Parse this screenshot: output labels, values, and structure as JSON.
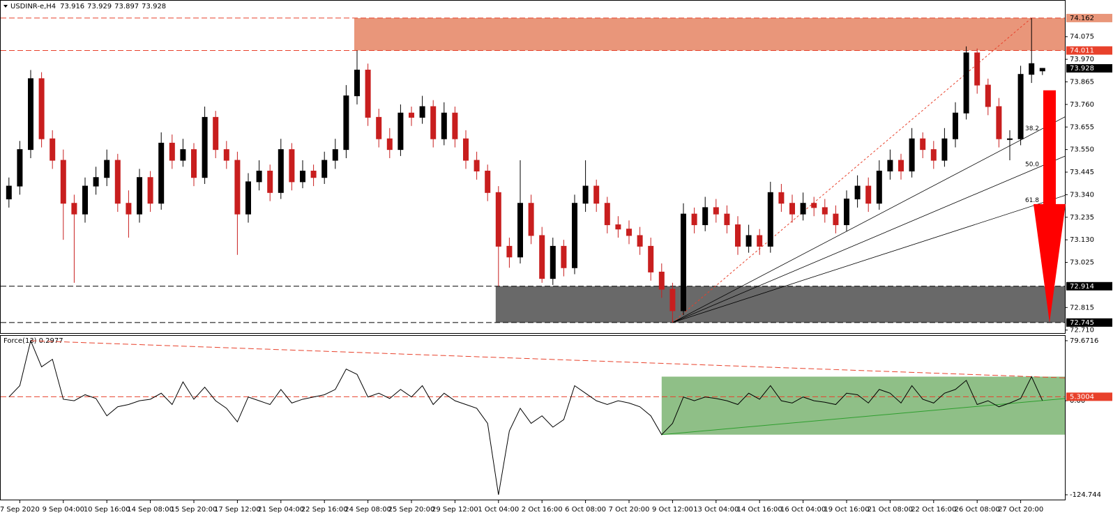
{
  "chart_data": [
    {
      "type": "candlestick",
      "symbol": "USDINR-e,H4",
      "color": "#000000",
      "down_color": "#c81e1e",
      "categories": [
        null,
        "7 Sep 2020",
        null,
        null,
        null,
        "9 Sep 04:00",
        null,
        null,
        null,
        "10 Sep 16:00",
        null,
        null,
        null,
        "14 Sep 08:00",
        null,
        null,
        null,
        "15 Sep 20:00",
        null,
        null,
        null,
        "17 Sep 12:00",
        null,
        null,
        null,
        "21 Sep 04:00",
        null,
        null,
        null,
        "22 Sep 16:00",
        null,
        null,
        null,
        "24 Sep 08:00",
        null,
        null,
        null,
        "25 Sep 20:00",
        null,
        null,
        null,
        "29 Sep 12:00",
        null,
        null,
        null,
        "1 Oct 04:00",
        null,
        null,
        null,
        "2 Oct 16:00",
        null,
        null,
        null,
        "6 Oct 08:00",
        null,
        null,
        null,
        "7 Oct 20:00",
        null,
        null,
        null,
        "9 Oct 12:00",
        null,
        null,
        null,
        "13 Oct 04:00",
        null,
        null,
        null,
        "14 Oct 16:00",
        null,
        null,
        null,
        "16 Oct 04:00",
        null,
        null,
        null,
        "19 Oct 16:00",
        null,
        null,
        null,
        "21 Oct 08:00",
        null,
        null,
        null,
        "22 Oct 16:00",
        null,
        null,
        null,
        "26 Oct 08:00",
        null,
        null,
        null,
        "27 Oct 20:00",
        null,
        null
      ],
      "open": [
        73.32,
        73.38,
        73.55,
        73.88,
        73.6,
        73.5,
        73.3,
        73.25,
        73.38,
        73.42,
        73.5,
        73.3,
        73.25,
        73.42,
        73.3,
        73.58,
        73.5,
        73.55,
        73.42,
        73.7,
        73.55,
        73.5,
        73.25,
        73.4,
        73.45,
        73.35,
        73.55,
        73.4,
        73.45,
        73.42,
        73.5,
        73.55,
        73.8,
        73.92,
        73.7,
        73.6,
        73.55,
        73.72,
        73.7,
        73.75,
        73.6,
        73.72,
        73.6,
        73.5,
        73.45,
        73.35,
        73.1,
        73.05,
        73.3,
        73.15,
        72.95,
        73.1,
        73.0,
        73.3,
        73.38,
        73.3,
        73.2,
        73.18,
        73.15,
        73.1,
        72.98,
        72.9,
        72.8,
        73.25,
        73.2,
        73.28,
        73.25,
        73.2,
        73.1,
        73.15,
        73.1,
        73.35,
        73.3,
        73.25,
        73.3,
        73.28,
        73.25,
        73.2,
        73.32,
        73.38,
        73.3,
        73.45,
        73.5,
        73.45,
        73.6,
        73.55,
        73.5,
        73.6,
        73.72,
        74.0,
        73.85,
        73.75,
        73.6,
        73.6,
        73.9,
        73.916
      ],
      "high": [
        73.42,
        73.59,
        73.92,
        73.91,
        73.64,
        73.55,
        73.34,
        73.42,
        73.47,
        73.55,
        73.53,
        73.36,
        73.46,
        73.45,
        73.63,
        73.62,
        73.6,
        73.58,
        73.75,
        73.73,
        73.59,
        73.54,
        73.44,
        73.5,
        73.48,
        73.6,
        73.58,
        73.5,
        73.48,
        73.54,
        73.6,
        73.85,
        74.011,
        73.95,
        73.74,
        73.65,
        73.76,
        73.75,
        73.8,
        73.78,
        73.77,
        73.75,
        73.64,
        73.54,
        73.48,
        73.38,
        73.14,
        73.5,
        73.34,
        73.19,
        73.14,
        73.13,
        73.34,
        73.5,
        73.41,
        73.33,
        73.24,
        73.22,
        73.19,
        73.14,
        73.02,
        72.93,
        73.3,
        73.28,
        73.33,
        73.32,
        73.29,
        73.24,
        73.2,
        73.18,
        73.4,
        73.39,
        73.34,
        73.35,
        73.33,
        73.32,
        73.29,
        73.36,
        73.43,
        73.42,
        73.5,
        73.55,
        73.53,
        73.65,
        73.63,
        73.59,
        73.65,
        73.77,
        74.03,
        74.02,
        73.88,
        73.79,
        73.64,
        73.94,
        74.162,
        73.929
      ],
      "low": [
        73.28,
        73.34,
        73.51,
        73.56,
        73.46,
        73.13,
        72.93,
        73.21,
        73.34,
        73.38,
        73.26,
        73.14,
        73.21,
        73.26,
        73.27,
        73.46,
        73.47,
        73.38,
        73.39,
        73.51,
        73.46,
        73.06,
        73.21,
        73.36,
        73.31,
        73.32,
        73.36,
        73.37,
        73.38,
        73.39,
        73.46,
        73.51,
        73.76,
        73.66,
        73.56,
        73.51,
        73.52,
        73.66,
        73.67,
        73.56,
        73.57,
        73.56,
        73.46,
        73.41,
        73.31,
        72.914,
        73.0,
        73.02,
        73.11,
        72.93,
        72.92,
        72.96,
        72.97,
        73.26,
        73.26,
        73.16,
        73.14,
        73.11,
        73.06,
        72.94,
        72.86,
        72.745,
        72.78,
        73.16,
        73.17,
        73.21,
        73.16,
        73.06,
        73.07,
        73.06,
        73.07,
        73.26,
        73.21,
        73.22,
        73.24,
        73.21,
        73.16,
        73.17,
        73.28,
        73.26,
        73.27,
        73.41,
        73.41,
        73.42,
        73.51,
        73.46,
        73.47,
        73.56,
        73.69,
        73.81,
        73.71,
        73.56,
        73.5,
        73.57,
        73.86,
        73.897
      ],
      "close": [
        73.38,
        73.55,
        73.88,
        73.6,
        73.5,
        73.3,
        73.25,
        73.38,
        73.42,
        73.5,
        73.3,
        73.25,
        73.42,
        73.3,
        73.58,
        73.5,
        73.55,
        73.42,
        73.7,
        73.55,
        73.5,
        73.25,
        73.4,
        73.45,
        73.35,
        73.55,
        73.4,
        73.45,
        73.42,
        73.5,
        73.55,
        73.8,
        73.92,
        73.7,
        73.6,
        73.55,
        73.72,
        73.7,
        73.75,
        73.6,
        73.72,
        73.6,
        73.5,
        73.45,
        73.35,
        73.1,
        73.05,
        73.3,
        73.15,
        72.95,
        73.1,
        73.0,
        73.3,
        73.38,
        73.3,
        73.2,
        73.18,
        73.15,
        73.1,
        72.98,
        72.9,
        72.8,
        73.25,
        73.2,
        73.28,
        73.25,
        73.2,
        73.1,
        73.15,
        73.1,
        73.35,
        73.3,
        73.25,
        73.3,
        73.28,
        73.25,
        73.2,
        73.32,
        73.38,
        73.3,
        73.45,
        73.5,
        73.45,
        73.6,
        73.55,
        73.5,
        73.6,
        73.72,
        74.0,
        73.85,
        73.75,
        73.6,
        73.6,
        73.9,
        73.95,
        73.928
      ],
      "ylim": [
        72.696,
        74.246
      ],
      "yticks": [
        74.075,
        {
          "value": 73.97,
          "label": "73.970"
        },
        73.865,
        {
          "value": 73.76,
          "label": "73.760"
        },
        73.655,
        {
          "value": 73.55,
          "label": "73.550"
        },
        73.445,
        {
          "value": 73.34,
          "label": "73.340"
        },
        73.235,
        {
          "value": 73.13,
          "label": "73.130"
        },
        73.025,
        72.815,
        {
          "value": 72.71,
          "label": "72.710"
        }
      ],
      "levels": [
        {
          "value": 74.162,
          "tag_color": "#e9967a",
          "text_color": "#000000"
        },
        {
          "value": 74.011,
          "tag_color": "#e8412b",
          "text_color": "#ffffff"
        },
        {
          "value": 72.914,
          "tag_color": "#000000",
          "text_color": "#ffffff"
        },
        {
          "value": 72.745,
          "tag_color": "#000000",
          "text_color": "#ffffff"
        }
      ],
      "zone_colors": [
        "#e9967a",
        "#696969"
      ],
      "fib_fan": [
        38.2,
        {
          "value": 50,
          "label": "50.0"
        },
        61.8
      ]
    },
    {
      "type": "line",
      "name": "Force(13)",
      "color": "#000000",
      "values": [
        5,
        20,
        79.6716,
        45,
        55,
        2,
        0,
        8,
        3,
        -20,
        -8,
        -5,
        0,
        2,
        10,
        -5,
        25,
        2,
        18,
        0,
        -10,
        -28,
        5,
        0,
        -5,
        15,
        -3,
        2,
        5,
        8,
        15,
        42,
        35,
        5,
        10,
        3,
        15,
        5,
        20,
        -5,
        10,
        0,
        -5,
        -10,
        -30,
        -124.744,
        -40,
        -10,
        -30,
        -20,
        -35,
        -25,
        20,
        10,
        0,
        -5,
        0,
        -3,
        -8,
        -20,
        -45,
        -30,
        5,
        0,
        5,
        3,
        0,
        -5,
        10,
        2,
        20,
        0,
        -3,
        5,
        0,
        -2,
        -5,
        10,
        8,
        -3,
        15,
        10,
        -3,
        20,
        2,
        -3,
        10,
        15,
        27,
        -5,
        0,
        -8,
        -3,
        3,
        32,
        0.2977
      ],
      "ylim": [
        -132.1,
        86.1
      ],
      "yticks": [
        79.6716,
        {
          "value": 0,
          "label": "0.00"
        },
        -124.744
      ],
      "levels": [
        {
          "value": 5.3004,
          "tag_color": "#e8412b",
          "text_color": "#ffffff"
        }
      ],
      "box_color": "#8fbf87",
      "trend_colors": [
        "#e8412b",
        "#2e9e2e"
      ]
    }
  ]
}
